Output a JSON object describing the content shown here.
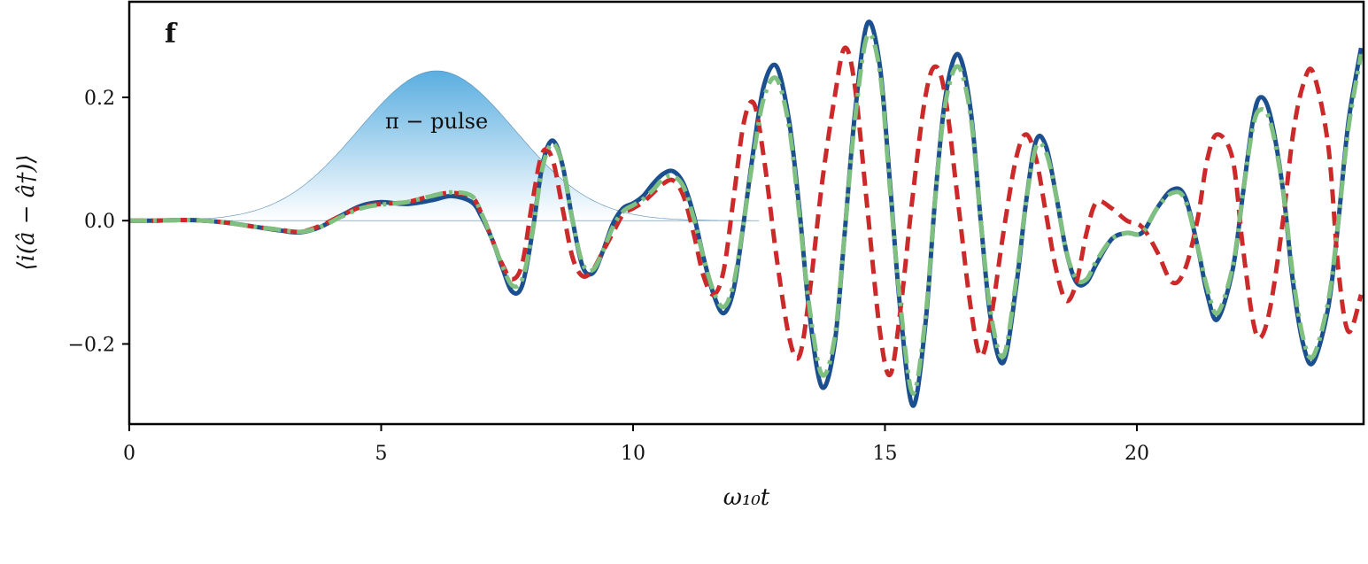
{
  "chart_data": {
    "type": "line",
    "panel_label": "f",
    "xlabel": "ω₁₀t",
    "ylabel": "⟨i(â − â†)⟩",
    "xlim": [
      0,
      24.5
    ],
    "ylim": [
      -0.33,
      0.355
    ],
    "xticks": [
      {
        "value": 0,
        "label": "0"
      },
      {
        "value": 5,
        "label": "5"
      },
      {
        "value": 10,
        "label": "10"
      },
      {
        "value": 15,
        "label": "15"
      },
      {
        "value": 20,
        "label": "20"
      }
    ],
    "yticks": [
      {
        "value": 0.2,
        "label": "0.2"
      },
      {
        "value": 0.0,
        "label": "0.0"
      },
      {
        "value": -0.2,
        "label": "−0.2"
      }
    ],
    "grid": false,
    "annotation": {
      "text": "π − pulse",
      "x": 6.1,
      "y": 0.15
    },
    "pulse_envelope": {
      "center": 6.1,
      "peak": 0.243,
      "width_sigma": 1.55,
      "color_top": "#5aaee0",
      "color_bottom": "#ffffff"
    },
    "series": [
      {
        "style": "solid",
        "color": "#1b4f8f",
        "x": [
          0,
          0.5,
          1,
          1.5,
          2,
          2.5,
          3,
          3.4,
          3.8,
          4.2,
          4.6,
          5,
          5.5,
          6,
          6.4,
          6.8,
          7.0,
          7.2,
          7.4,
          7.6,
          7.8,
          8.0,
          8.2,
          8.4,
          8.6,
          8.8,
          9.0,
          9.2,
          9.4,
          9.6,
          9.8,
          10.0,
          10.2,
          10.4,
          10.6,
          10.8,
          11.0,
          11.2,
          11.4,
          11.6,
          11.8,
          12.0,
          12.2,
          12.4,
          12.6,
          12.85,
          13.1,
          13.3,
          13.5,
          13.75,
          14.0,
          14.2,
          14.4,
          14.65,
          14.9,
          15.1,
          15.3,
          15.55,
          15.8,
          16.0,
          16.2,
          16.45,
          16.7,
          16.9,
          17.1,
          17.35,
          17.6,
          17.8,
          18.0,
          18.2,
          18.4,
          18.6,
          18.8,
          19.0,
          19.2,
          19.5,
          19.8,
          20.1,
          20.4,
          20.7,
          20.95,
          21.2,
          21.4,
          21.6,
          21.9,
          22.1,
          22.3,
          22.45,
          22.65,
          22.9,
          23.1,
          23.3,
          23.5,
          23.8,
          24.0,
          24.2,
          24.45
        ],
        "y": [
          0,
          0,
          0.001,
          0,
          -0.004,
          -0.01,
          -0.016,
          -0.019,
          -0.01,
          0.008,
          0.024,
          0.03,
          0.027,
          0.033,
          0.04,
          0.03,
          0.005,
          -0.03,
          -0.075,
          -0.115,
          -0.105,
          -0.02,
          0.09,
          0.13,
          0.09,
          0,
          -0.075,
          -0.085,
          -0.05,
          -0.005,
          0.02,
          0.028,
          0.04,
          0.06,
          0.076,
          0.08,
          0.06,
          0.01,
          -0.06,
          -0.12,
          -0.15,
          -0.11,
          0.0,
          0.12,
          0.22,
          0.25,
          0.16,
          0.02,
          -0.15,
          -0.27,
          -0.2,
          -0.02,
          0.17,
          0.32,
          0.25,
          0.06,
          -0.14,
          -0.3,
          -0.17,
          0.04,
          0.2,
          0.27,
          0.18,
          0.0,
          -0.16,
          -0.23,
          -0.11,
          0.03,
          0.13,
          0.12,
          0.04,
          -0.05,
          -0.1,
          -0.1,
          -0.07,
          -0.03,
          -0.02,
          -0.02,
          0.02,
          0.05,
          0.04,
          -0.04,
          -0.12,
          -0.16,
          -0.08,
          0.04,
          0.16,
          0.2,
          0.17,
          0.05,
          -0.1,
          -0.2,
          -0.23,
          -0.14,
          0.0,
          0.16,
          0.28
        ]
      },
      {
        "style": "dashed",
        "color": "#cc2a2a",
        "x": [
          0,
          0.5,
          1,
          1.5,
          2,
          2.5,
          3,
          3.4,
          3.8,
          4.2,
          4.6,
          5,
          5.5,
          6,
          6.4,
          6.8,
          7.0,
          7.2,
          7.4,
          7.6,
          7.8,
          8.0,
          8.2,
          8.4,
          8.6,
          8.8,
          9.0,
          9.2,
          9.4,
          9.6,
          9.8,
          10.0,
          10.2,
          10.4,
          10.6,
          10.8,
          11.0,
          11.2,
          11.4,
          11.6,
          11.8,
          12.0,
          12.2,
          12.4,
          12.6,
          12.85,
          13.1,
          13.3,
          13.5,
          13.75,
          14.0,
          14.2,
          14.4,
          14.65,
          14.9,
          15.1,
          15.3,
          15.55,
          15.8,
          16.0,
          16.2,
          16.45,
          16.7,
          16.9,
          17.1,
          17.35,
          17.6,
          17.8,
          18.0,
          18.2,
          18.4,
          18.6,
          18.8,
          19.0,
          19.2,
          19.5,
          19.8,
          20.1,
          20.4,
          20.7,
          20.95,
          21.2,
          21.4,
          21.6,
          21.9,
          22.1,
          22.3,
          22.45,
          22.65,
          22.9,
          23.1,
          23.3,
          23.5,
          23.8,
          24.0,
          24.2,
          24.45
        ],
        "y": [
          0,
          0,
          0.001,
          0,
          -0.004,
          -0.01,
          -0.015,
          -0.018,
          -0.008,
          0.008,
          0.022,
          0.027,
          0.03,
          0.04,
          0.045,
          0.038,
          0.01,
          -0.03,
          -0.07,
          -0.095,
          -0.07,
          0.03,
          0.11,
          0.1,
          0.02,
          -0.06,
          -0.09,
          -0.08,
          -0.05,
          -0.02,
          0.01,
          0.02,
          0.03,
          0.045,
          0.06,
          0.065,
          0.04,
          -0.02,
          -0.09,
          -0.12,
          -0.08,
          0.04,
          0.16,
          0.19,
          0.1,
          -0.06,
          -0.19,
          -0.22,
          -0.12,
          0.06,
          0.2,
          0.28,
          0.22,
          0.02,
          -0.18,
          -0.25,
          -0.15,
          0.04,
          0.2,
          0.25,
          0.2,
          0.03,
          -0.14,
          -0.22,
          -0.16,
          -0.02,
          0.1,
          0.14,
          0.1,
          0.01,
          -0.08,
          -0.13,
          -0.1,
          -0.02,
          0.03,
          0.02,
          0.0,
          -0.01,
          -0.05,
          -0.1,
          -0.08,
          0.0,
          0.1,
          0.14,
          0.1,
          -0.04,
          -0.16,
          -0.19,
          -0.14,
          0.0,
          0.14,
          0.22,
          0.24,
          0.12,
          -0.08,
          -0.18,
          -0.12
        ]
      },
      {
        "style": "dashdot",
        "color": "#7fbf7f",
        "x": [
          0,
          0.5,
          1,
          1.5,
          2,
          2.5,
          3,
          3.4,
          3.8,
          4.2,
          4.6,
          5,
          5.5,
          6,
          6.4,
          6.8,
          7.0,
          7.2,
          7.4,
          7.6,
          7.8,
          8.0,
          8.2,
          8.4,
          8.6,
          8.8,
          9.0,
          9.2,
          9.4,
          9.6,
          9.8,
          10.0,
          10.2,
          10.4,
          10.6,
          10.8,
          11.0,
          11.2,
          11.4,
          11.6,
          11.8,
          12.0,
          12.2,
          12.4,
          12.6,
          12.85,
          13.1,
          13.3,
          13.5,
          13.75,
          14.0,
          14.2,
          14.4,
          14.65,
          14.9,
          15.1,
          15.3,
          15.55,
          15.8,
          16.0,
          16.2,
          16.45,
          16.7,
          16.9,
          17.1,
          17.35,
          17.6,
          17.8,
          18.0,
          18.2,
          18.4,
          18.6,
          18.8,
          19.0,
          19.2,
          19.5,
          19.8,
          20.1,
          20.4,
          20.7,
          20.95,
          21.2,
          21.4,
          21.6,
          21.9,
          22.1,
          22.3,
          22.45,
          22.65,
          22.9,
          23.1,
          23.3,
          23.5,
          23.8,
          24.0,
          24.2,
          24.45
        ],
        "y": [
          0,
          0,
          0.001,
          0,
          -0.004,
          -0.01,
          -0.015,
          -0.018,
          -0.01,
          0.006,
          0.02,
          0.026,
          0.03,
          0.04,
          0.046,
          0.04,
          0.01,
          -0.03,
          -0.072,
          -0.105,
          -0.095,
          -0.02,
          0.085,
          0.125,
          0.09,
          0.0,
          -0.07,
          -0.08,
          -0.05,
          -0.01,
          0.015,
          0.025,
          0.035,
          0.05,
          0.068,
          0.072,
          0.055,
          0.005,
          -0.06,
          -0.115,
          -0.14,
          -0.1,
          0.0,
          0.11,
          0.2,
          0.23,
          0.15,
          0.01,
          -0.14,
          -0.25,
          -0.19,
          -0.02,
          0.16,
          0.3,
          0.24,
          0.05,
          -0.13,
          -0.28,
          -0.16,
          0.04,
          0.19,
          0.25,
          0.17,
          0.0,
          -0.15,
          -0.22,
          -0.1,
          0.03,
          0.12,
          0.11,
          0.04,
          -0.05,
          -0.095,
          -0.095,
          -0.065,
          -0.03,
          -0.02,
          -0.02,
          0.02,
          0.045,
          0.035,
          -0.04,
          -0.11,
          -0.15,
          -0.075,
          0.04,
          0.15,
          0.18,
          0.16,
          0.05,
          -0.09,
          -0.19,
          -0.22,
          -0.13,
          0.0,
          0.15,
          0.27
        ]
      }
    ]
  }
}
